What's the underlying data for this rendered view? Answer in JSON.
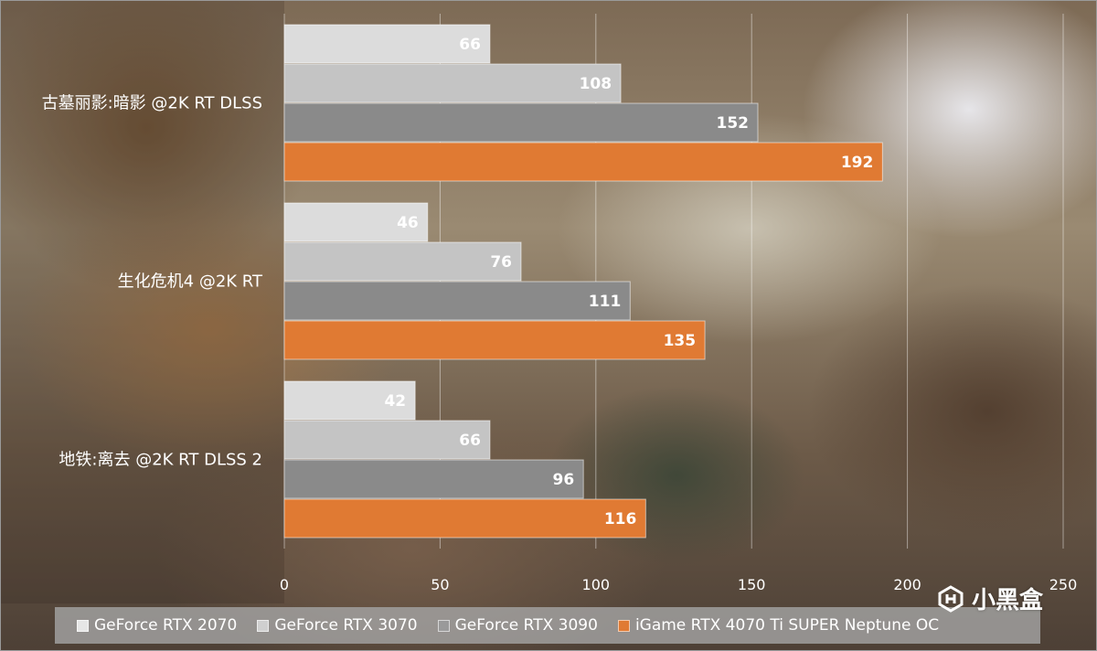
{
  "chart_data": {
    "type": "bar",
    "orientation": "horizontal",
    "categories": [
      "古墓丽影:暗影 @2K RT DLSS",
      "生化危机4 @2K RT",
      "地铁:离去 @2K RT DLSS 2"
    ],
    "series": [
      {
        "name": "GeForce RTX 2070",
        "values": [
          66,
          46,
          42
        ],
        "color": "#dcdcdc"
      },
      {
        "name": "GeForce RTX 3070",
        "values": [
          108,
          76,
          66
        ],
        "color": "#c4c4c4"
      },
      {
        "name": "GeForce RTX 3090",
        "values": [
          152,
          111,
          96
        ],
        "color": "#8a8a8a"
      },
      {
        "name": "iGame RTX 4070 Ti SUPER Neptune OC",
        "values": [
          192,
          135,
          116
        ],
        "color": "#e07a33"
      }
    ],
    "xlim": [
      0,
      250
    ],
    "xticks": [
      0,
      50,
      100,
      150,
      200,
      250
    ],
    "grid": true,
    "legend_position": "bottom",
    "title": "",
    "xlabel": "",
    "ylabel": ""
  },
  "legend": {
    "items": [
      {
        "label": "GeForce RTX 2070",
        "color": "#e6e6e6"
      },
      {
        "label": "GeForce RTX 3070",
        "color": "#cfcfcf"
      },
      {
        "label": "GeForce RTX 3090",
        "color": "#9a9a9a"
      },
      {
        "label": "iGame RTX 4070 Ti SUPER Neptune OC",
        "color": "#e07a33"
      }
    ]
  },
  "watermark": {
    "text": "小黑盒",
    "icon": "xiaoheihe-logo-icon"
  }
}
